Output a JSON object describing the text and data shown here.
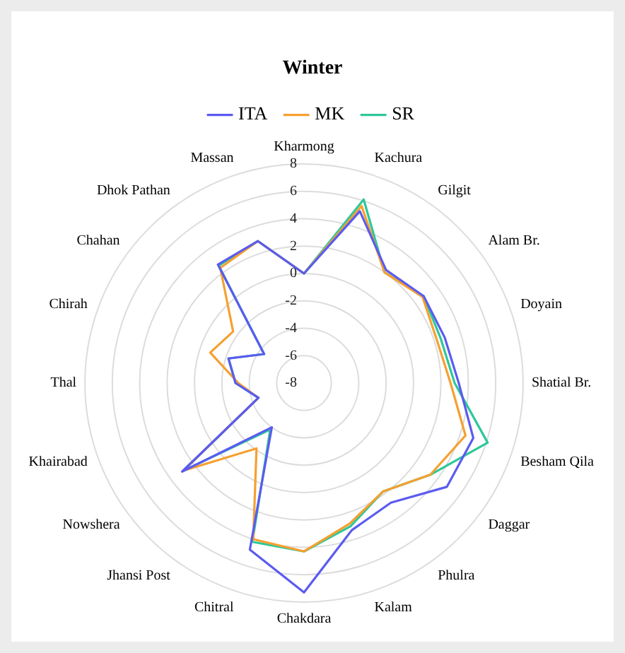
{
  "chart_data": {
    "type": "radar",
    "title": "Winter",
    "categories": [
      "Kharmong",
      "Kachura",
      "Gilgit",
      "Alam Br.",
      "Doyain",
      "Shatial Br.",
      "Besham Qila",
      "Daggar",
      "Phulra",
      "Kalam",
      "Chakdara",
      "Chitral",
      "Jhansi Post",
      "Nowshera",
      "Khairabad",
      "Thal",
      "Chirah",
      "Chahan",
      "Dhok Pathan",
      "Massan"
    ],
    "series": [
      {
        "name": "ITA",
        "color": "#5b5bf0",
        "values": [
          0,
          5.2,
          2.2,
          2.8,
          2.8,
          3.3,
          5.0,
          4.9,
          2.8,
          3.3,
          7.3,
          4.8,
          -4.0,
          3.0,
          -4.5,
          -3.0,
          -2.2,
          -4.4,
          2.7,
          2.9
        ]
      },
      {
        "name": "MK",
        "color": "#f5a030",
        "values": [
          0,
          5.6,
          2.0,
          2.7,
          2.2,
          2.7,
          4.4,
          3.4,
          1.8,
          2.8,
          4.3,
          4.0,
          -2.1,
          2.9,
          -4.5,
          -3.2,
          -0.8,
          -1.6,
          2.4,
          2.9
        ]
      },
      {
        "name": "SR",
        "color": "#2ec79a",
        "values": [
          0,
          6.1,
          2.0,
          2.8,
          2.5,
          3.0,
          6.1,
          3.4,
          1.8,
          3.0,
          4.3,
          4.2,
          -3.8,
          2.9,
          -4.5,
          -3.0,
          -2.2,
          -4.4,
          2.6,
          2.9
        ]
      }
    ],
    "ylim": [
      -8,
      8
    ],
    "yticks": [
      -8,
      -6,
      -4,
      -2,
      0,
      2,
      4,
      6,
      8
    ],
    "grid": true,
    "legend": "top",
    "marker": "none",
    "line_style": "solid"
  }
}
